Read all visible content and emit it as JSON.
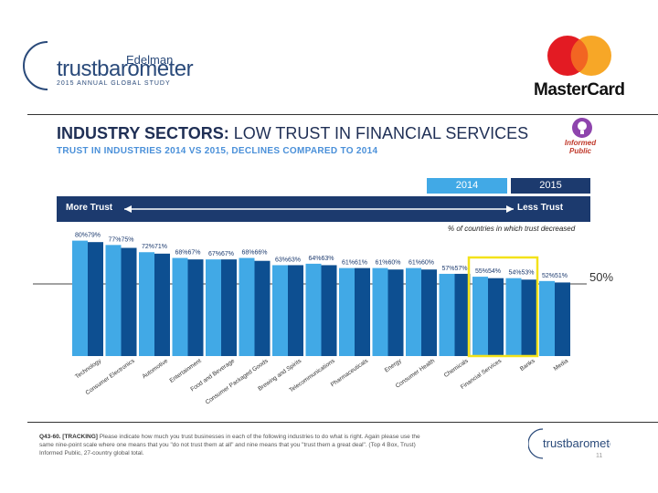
{
  "logos": {
    "edelman_name": "Edelman",
    "trustbarometer": "trustbarometer",
    "edelman_sub": "2015 ANNUAL GLOBAL STUDY",
    "mastercard": "MasterCard",
    "informed_public": "Informed Public"
  },
  "slide": {
    "title_bold": "INDUSTRY SECTORS:",
    "title_rest": " LOW TRUST IN FINANCIAL SERVICES",
    "subtitle": "TRUST IN INDUSTRIES 2014 VS 2015, DECLINES COMPARED TO 2014",
    "more_trust": "More Trust",
    "less_trust": "Less Trust",
    "legend_note": "% of countries in which trust decreased",
    "fifty_label": "50%",
    "footnote_bold": "Q43-60. [TRACKING]",
    "footnote_text": " Please indicate how much you trust businesses in each of the following industries to do what is right. Again please use the same nine-point scale where one means that you \"do not trust them at all\" and nine means that you \"trust them a great deal\". (Top 4 Box, Trust) Informed Public, 27-country global total.",
    "small_logo": "trustbarometer",
    "page_number": "11"
  },
  "chart_data": {
    "type": "bar",
    "title": "TRUST IN INDUSTRIES 2014 VS 2015, DECLINES COMPARED TO 2014",
    "xlabel": "",
    "ylabel": "",
    "reference_line": 50,
    "categories": [
      "Technology",
      "Consumer Electronics",
      "Automotive",
      "Entertainment",
      "Food and Beverage",
      "Consumer Packaged Goods",
      "Brewing and Spirits",
      "Telecommunications",
      "Pharmaceuticals",
      "Energy",
      "Consumer Health",
      "Chemicals",
      "Financial Services",
      "Banks",
      "Media"
    ],
    "series": [
      {
        "name": "2014",
        "color": "#41a9e6",
        "values": [
          80,
          77,
          72,
          68,
          67,
          68,
          63,
          64,
          61,
          61,
          61,
          57,
          55,
          54,
          52
        ]
      },
      {
        "name": "2015",
        "color": "#0d4f91",
        "values": [
          79,
          75,
          71,
          67,
          67,
          66,
          63,
          63,
          61,
          60,
          60,
          57,
          54,
          53,
          51
        ]
      }
    ],
    "value_labels": [
      [
        "80%",
        "79%"
      ],
      [
        "77%",
        "75%"
      ],
      [
        "72%",
        "71%"
      ],
      [
        "68%",
        "67%"
      ],
      [
        "67%",
        "67%"
      ],
      [
        "68%",
        "66%"
      ],
      [
        "63%",
        "63%"
      ],
      [
        "64%",
        "63%"
      ],
      [
        "61%",
        "61%"
      ],
      [
        "61%",
        "60%"
      ],
      [
        "61%",
        "60%"
      ],
      [
        "57%",
        "57%"
      ],
      [
        "55%",
        "54%"
      ],
      [
        "54%",
        "53%"
      ],
      [
        "52%",
        "51%"
      ]
    ],
    "years": [
      "2014",
      "2015"
    ],
    "highlight_categories": [
      "Financial Services",
      "Banks"
    ],
    "highlight_color": "#f3e21a",
    "colors": {
      "dark_navy": "#1c3a6e",
      "year_2015_box": "#1c3a6e",
      "year_2014_box": "#41a9e6"
    }
  }
}
